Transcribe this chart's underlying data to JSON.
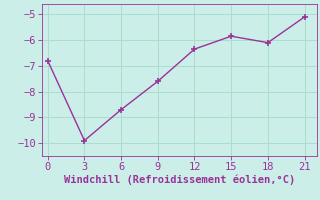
{
  "x": [
    0,
    3,
    6,
    9,
    12,
    15,
    18,
    21
  ],
  "y": [
    -6.8,
    -9.9,
    -8.7,
    -7.6,
    -6.35,
    -5.85,
    -6.1,
    -5.1
  ],
  "line_color": "#993399",
  "marker": "+",
  "marker_size": 5,
  "marker_lw": 1.2,
  "line_width": 1.0,
  "bg_color": "#cceee8",
  "grid_color": "#aaddcc",
  "xlabel": "Windchill (Refroidissement éolien,°C)",
  "xlabel_color": "#993399",
  "tick_color": "#993399",
  "spine_color": "#993399",
  "xlim": [
    -0.5,
    22.0
  ],
  "ylim": [
    -10.5,
    -4.6
  ],
  "xticks": [
    0,
    3,
    6,
    9,
    12,
    15,
    18,
    21
  ],
  "yticks": [
    -10,
    -9,
    -8,
    -7,
    -6,
    -5
  ],
  "axis_fontsize": 7.5,
  "tick_fontsize": 7.5
}
